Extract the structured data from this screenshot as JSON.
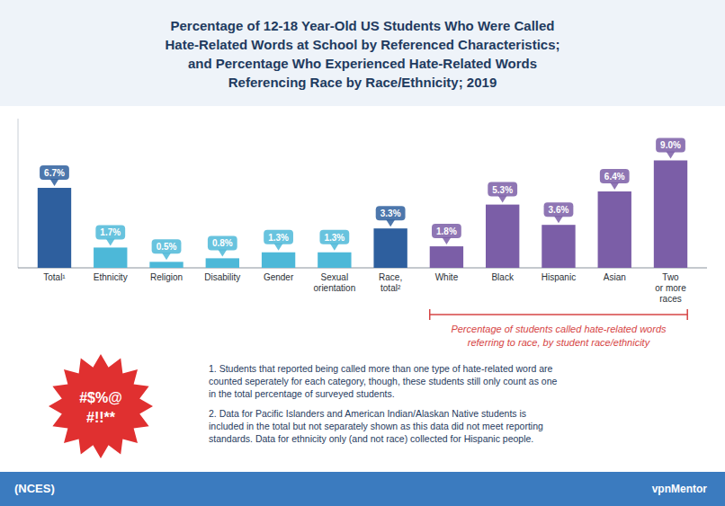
{
  "chart_data": {
    "type": "bar",
    "title": "Percentage of 12-18 Year-Old US Students Who Were Called\nHate-Related Words at School by Referenced Characteristics;\nand Percentage Who Experienced Hate-Related Words\nReferencing Race by Race/Ethnicity; 2019",
    "categories": [
      "Total¹",
      "Ethnicity",
      "Religion",
      "Disability",
      "Gender",
      "Sexual\norientation",
      "Race,\ntotal²",
      "White",
      "Black",
      "Hispanic",
      "Asian",
      "Two\nor more\nraces"
    ],
    "values": [
      6.7,
      1.7,
      0.5,
      0.8,
      1.3,
      1.3,
      3.3,
      1.8,
      5.3,
      3.6,
      6.4,
      9.0
    ],
    "value_labels": [
      "6.7%",
      "1.7%",
      "0.5%",
      "0.8%",
      "1.3%",
      "1.3%",
      "3.3%",
      "1.8%",
      "5.3%",
      "3.6%",
      "6.4%",
      "9.0%"
    ],
    "colors": [
      "#2e5f9e",
      "#4db8d8",
      "#4db8d8",
      "#4db8d8",
      "#4db8d8",
      "#4db8d8",
      "#2e5f9e",
      "#7b5ea7",
      "#7b5ea7",
      "#7b5ea7",
      "#7b5ea7",
      "#7b5ea7"
    ],
    "ylim": [
      0,
      12.5
    ],
    "data_labels": true,
    "tick_labels": false,
    "grid": false,
    "annotations": [
      "Percentage of students called hate-related words\nreferring to race, by student race/ethnicity",
      "1. Students that reported being called more than one type of hate-related word are\ncounted seperately for each category, though, these students still only count as one\nin the total percentage of surveyed students.",
      "2. Data for Pacific Islanders and American Indian/Alaskan Native students is\nincluded in the total but not separately shown as this data did not meet reporting\nstandards. Data for ethnicity only (and not race) collected for Hispanic people.",
      "#$%@",
      "#!!**",
      "(NCES)",
      "vpnMentor"
    ]
  }
}
